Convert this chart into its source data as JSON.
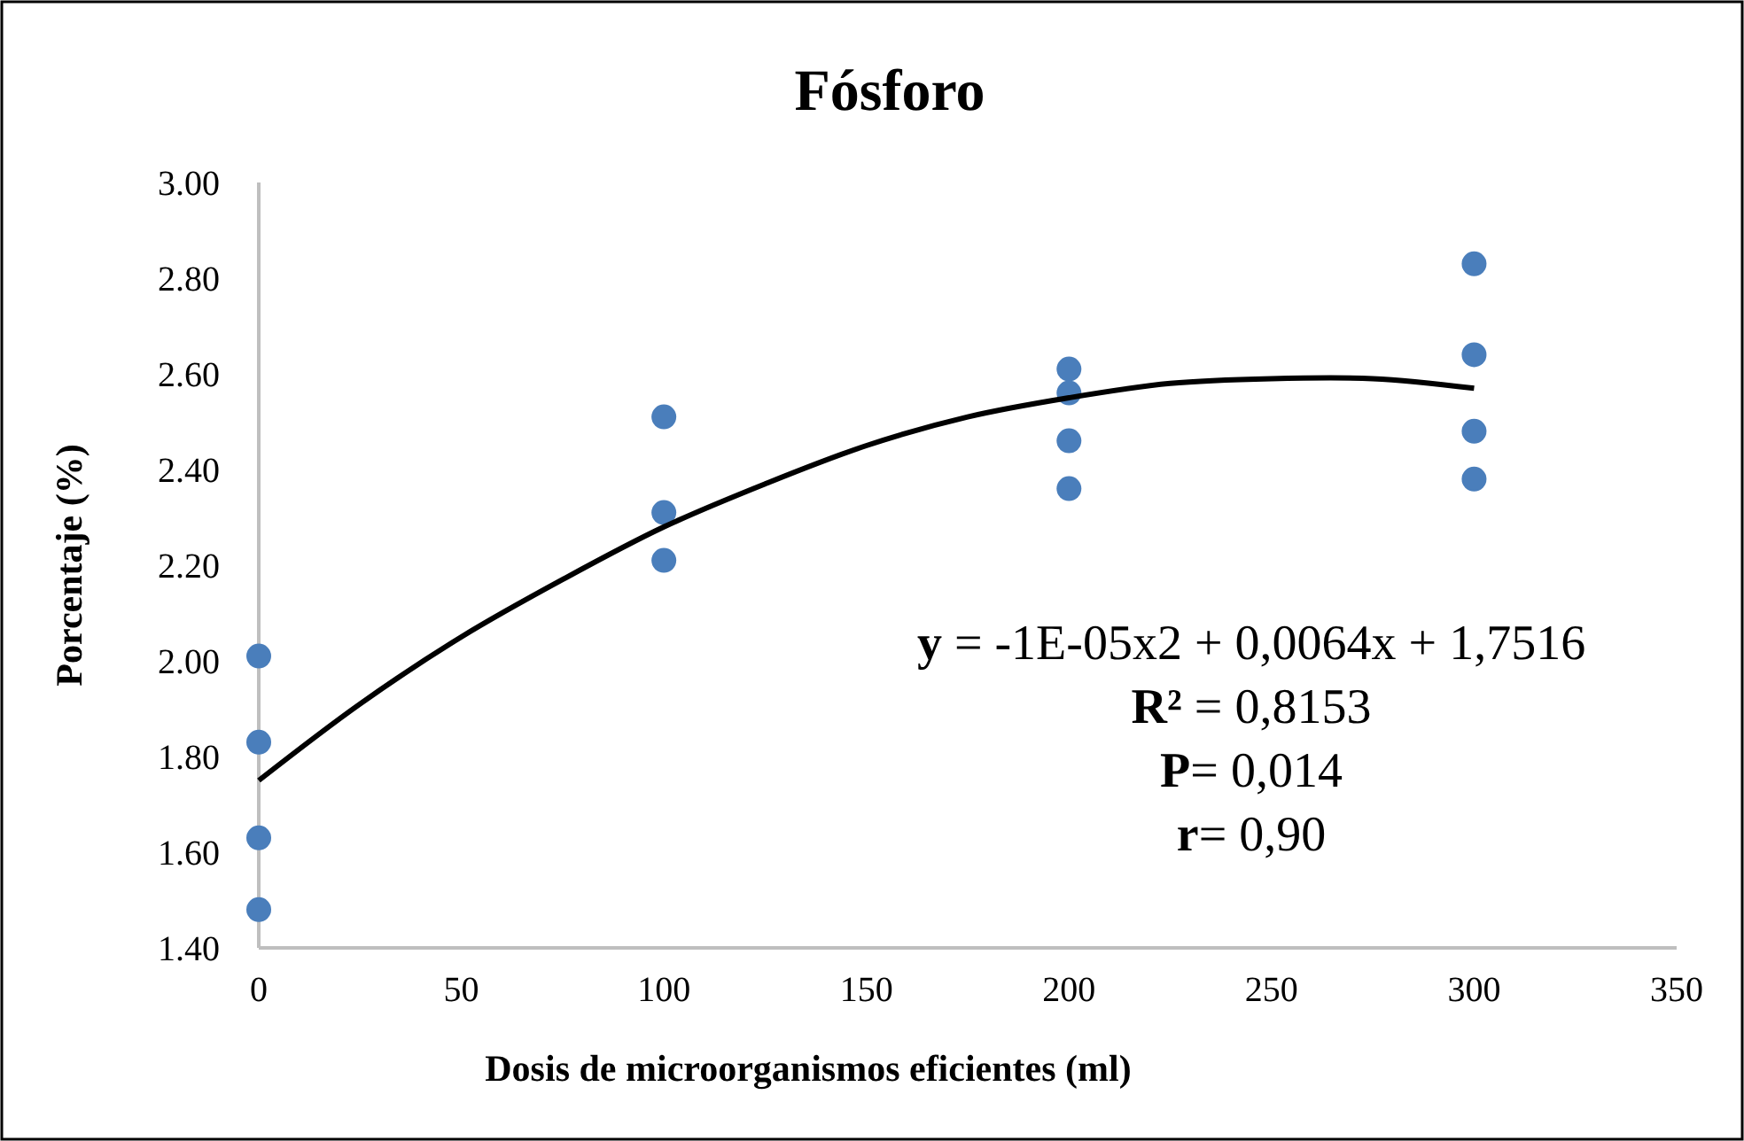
{
  "chart_data": {
    "type": "scatter",
    "title": "Fósforo",
    "xlabel": "Dosis de microorganismos eficientes  (ml)",
    "ylabel": "Porcentaje  (%)",
    "xlim": [
      0,
      350
    ],
    "xticks": [
      0,
      50,
      100,
      150,
      200,
      250,
      300,
      350
    ],
    "ylim": [
      1.4,
      3.0
    ],
    "yticks": [
      {
        "value": 1.4,
        "label": "1.40"
      },
      {
        "value": 1.6,
        "label": "1.60"
      },
      {
        "value": 1.8,
        "label": "1.80"
      },
      {
        "value": 2.0,
        "label": "2.00"
      },
      {
        "value": 2.2,
        "label": "2.20"
      },
      {
        "value": 2.4,
        "label": "2.40"
      },
      {
        "value": 2.6,
        "label": "2.60"
      },
      {
        "value": 2.8,
        "label": "2.80"
      },
      {
        "value": 3.0,
        "label": "3.00"
      }
    ],
    "grid": false,
    "marker": "circle",
    "series": [
      {
        "color": "#4a7ebb",
        "x": [
          0,
          0,
          0,
          0,
          100,
          100,
          100,
          200,
          200,
          200,
          200,
          300,
          300,
          300,
          300
        ],
        "values": [
          2.01,
          1.83,
          1.63,
          1.48,
          2.51,
          2.31,
          2.21,
          2.61,
          2.56,
          2.46,
          2.36,
          2.83,
          2.64,
          2.48,
          2.38
        ]
      },
      {
        "type": "line",
        "color": "#000000",
        "marker": "none",
        "line_style": "solid",
        "x": [
          0,
          25,
          50,
          75,
          100,
          125,
          150,
          175,
          200,
          225,
          250,
          275,
          300
        ],
        "values": [
          1.75,
          1.91,
          2.05,
          2.17,
          2.28,
          2.37,
          2.45,
          2.51,
          2.55,
          2.58,
          2.59,
          2.59,
          2.57
        ]
      }
    ],
    "annotations": [
      "y = -1E-05x2 + 0,0064x + 1,7516",
      "R² = 0,8153",
      "P= 0,014",
      "r=  0,90"
    ]
  }
}
